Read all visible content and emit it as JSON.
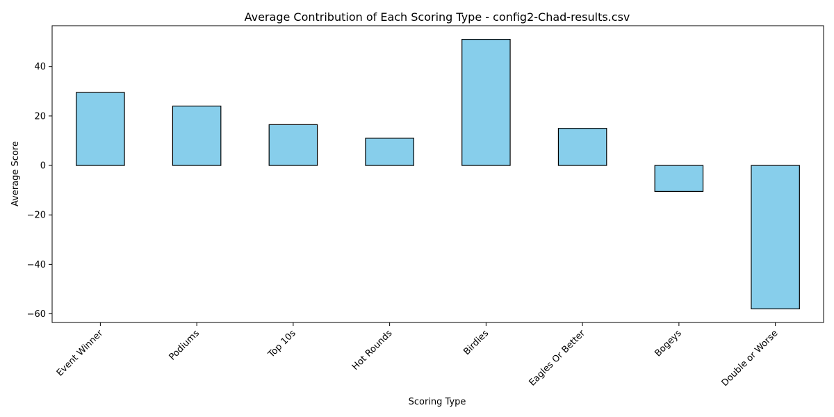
{
  "chart_data": {
    "type": "bar",
    "title": "Average Contribution of Each Scoring Type - config2-Chad-results.csv",
    "xlabel": "Scoring Type",
    "ylabel": "Average Score",
    "categories": [
      "Event Winner",
      "Podiums",
      "Top 10s",
      "Hot Rounds",
      "Birdies",
      "Eagles Or Better",
      "Bogeys",
      "Double or Worse"
    ],
    "values": [
      29.5,
      24.0,
      16.5,
      11.0,
      51.0,
      15.0,
      -10.5,
      -58.0
    ],
    "ylim": [
      -63.5,
      56.5
    ],
    "yticks": [
      40,
      20,
      0,
      -20,
      -40,
      -60
    ],
    "ytick_labels": [
      "40",
      "20",
      "0",
      "−20",
      "−40",
      "−60"
    ],
    "grid": false,
    "legend": "none",
    "bar_color": "#87ceeb",
    "edge_color": "#000000"
  }
}
